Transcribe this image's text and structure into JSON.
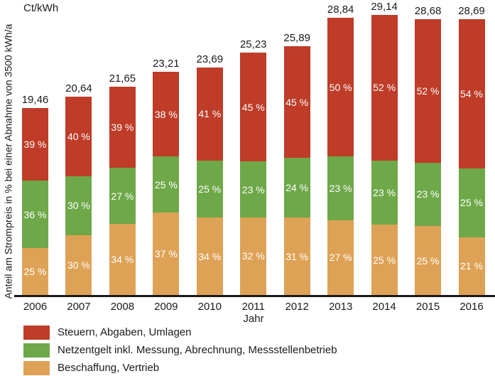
{
  "chart_data": {
    "type": "bar",
    "variant": "stacked",
    "title": "",
    "unit_label": "Ct/kWh",
    "xlabel": "Jahr",
    "ylabel": "Anteil am Strompreis in % bei einer Abnahme von 3500 kWh/a",
    "categories": [
      "2006",
      "2007",
      "2008",
      "2009",
      "2010",
      "2011",
      "2012",
      "2013",
      "2014",
      "2015",
      "2016"
    ],
    "totals_ct_per_kwh": [
      19.46,
      20.64,
      21.65,
      23.21,
      23.69,
      25.23,
      25.89,
      28.84,
      29.14,
      28.68,
      28.69
    ],
    "total_labels": [
      "19,46",
      "20,64",
      "21,65",
      "23,21",
      "23,69",
      "25,23",
      "25,89",
      "28,84",
      "29,14",
      "28,68",
      "28,69"
    ],
    "series": [
      {
        "name": "Steuern, Abgaben, Umlagen",
        "color": "#be3c28",
        "percent": [
          39,
          40,
          39,
          38,
          41,
          45,
          45,
          50,
          52,
          52,
          54
        ],
        "percent_labels": [
          "39 %",
          "40 %",
          "39 %",
          "38 %",
          "41 %",
          "45 %",
          "45 %",
          "50 %",
          "52 %",
          "52 %",
          "54 %"
        ]
      },
      {
        "name": "Netzentgelt inkl. Messung, Abrechnung, Messstellenbetrieb",
        "color": "#6ea848",
        "percent": [
          36,
          30,
          27,
          25,
          25,
          23,
          24,
          23,
          23,
          23,
          25
        ],
        "percent_labels": [
          "36 %",
          "30 %",
          "27 %",
          "25 %",
          "25 %",
          "23 %",
          "24 %",
          "23 %",
          "23 %",
          "23 %",
          "25 %"
        ]
      },
      {
        "name": "Beschaffung, Vertrieb",
        "color": "#dea256",
        "percent": [
          25,
          30,
          34,
          37,
          34,
          32,
          31,
          27,
          25,
          25,
          21
        ],
        "percent_labels": [
          "25 %",
          "30 %",
          "34 %",
          "37 %",
          "34 %",
          "32 %",
          "31 %",
          "27 %",
          "25 %",
          "25 %",
          "21 %"
        ]
      }
    ],
    "ylim": [
      0,
      29.14
    ],
    "grid": false,
    "legend_position": "bottom-left",
    "text_color": "#1a1a1a",
    "bar_label_color": "#ffffff"
  }
}
